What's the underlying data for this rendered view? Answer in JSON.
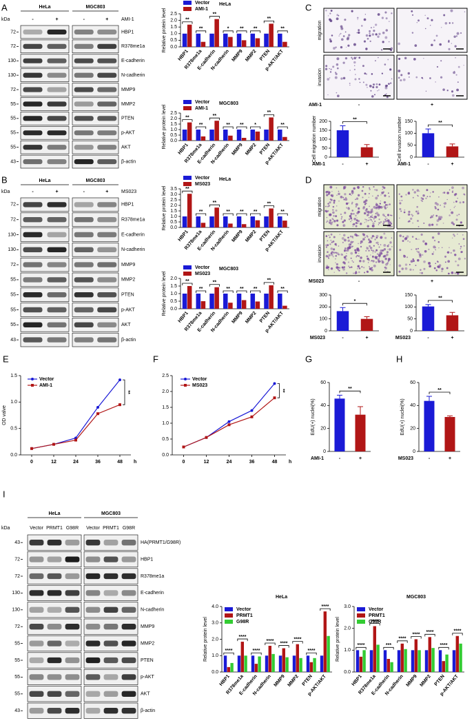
{
  "panel_labels": [
    "A",
    "B",
    "C",
    "D",
    "E",
    "F",
    "G",
    "H",
    "I"
  ],
  "blots": [
    {
      "kda_label": "kDa",
      "groups": [
        "HeLa",
        "MGC803"
      ],
      "lanes": [
        "-",
        "+",
        "-",
        "+"
      ],
      "treatment": "AMI-1",
      "rows": [
        {
          "kda": 72,
          "protein": "HBP1"
        },
        {
          "kda": 72,
          "protein": "R378me1a"
        },
        {
          "kda": 130,
          "protein": "E-cadherin"
        },
        {
          "kda": 130,
          "protein": "N-cadherin"
        },
        {
          "kda": 72,
          "protein": "MMP9"
        },
        {
          "kda": 55,
          "protein": "MMP2"
        },
        {
          "kda": 55,
          "protein": "PTEN"
        },
        {
          "kda": 55,
          "protein": "p-AKT"
        },
        {
          "kda": 55,
          "protein": "AKT"
        },
        {
          "kda": 43,
          "protein": "β-actin"
        }
      ]
    },
    {
      "kda_label": "kDa",
      "groups": [
        "HeLa",
        "MGC803"
      ],
      "lanes": [
        "-",
        "+",
        "-",
        "+"
      ],
      "treatment": "MS023",
      "rows": [
        {
          "kda": 72,
          "protein": "HBP1"
        },
        {
          "kda": 72,
          "protein": "R378me1a"
        },
        {
          "kda": 130,
          "protein": "E-cadherin"
        },
        {
          "kda": 130,
          "protein": "N-cadherin"
        },
        {
          "kda": 72,
          "protein": "MMP9"
        },
        {
          "kda": 55,
          "protein": "MMP2"
        },
        {
          "kda": 55,
          "protein": "PTEN"
        },
        {
          "kda": 55,
          "protein": "p-AKT"
        },
        {
          "kda": 55,
          "protein": "AKT"
        },
        {
          "kda": 43,
          "protein": "β-actin"
        }
      ]
    },
    {
      "kda_label": "kDa",
      "groups": [
        "HeLa",
        "MGC803"
      ],
      "lanes": [
        "Vector",
        "PRMT1",
        "G98R",
        "Vector",
        "PRMT1",
        "G98R"
      ],
      "rows": [
        {
          "kda": 43,
          "protein": "HA(PRMT1/G98R)"
        },
        {
          "kda": 72,
          "protein": "HBP1"
        },
        {
          "kda": 72,
          "protein": "R378me1a"
        },
        {
          "kda": 130,
          "protein": "E-cadherin"
        },
        {
          "kda": 130,
          "protein": "N-cadherin"
        },
        {
          "kda": 72,
          "protein": "MMP9"
        },
        {
          "kda": 55,
          "protein": "MMP2"
        },
        {
          "kda": 55,
          "protein": "PTEN"
        },
        {
          "kda": 55,
          "protein": "p-AKT"
        },
        {
          "kda": 55,
          "protein": "AKT"
        },
        {
          "kda": 43,
          "protein": "β-actin"
        }
      ]
    }
  ],
  "micrographs": [
    {
      "rows": [
        "migration",
        "invasion"
      ],
      "treatment": "AMI-1",
      "lanes": [
        "-",
        "+"
      ]
    },
    {
      "rows": [
        "migration",
        "invasion"
      ],
      "treatment": "MS023",
      "lanes": [
        "-",
        "+"
      ]
    }
  ],
  "chart_data": [
    {
      "type": "bar",
      "title": "HeLa",
      "ylabel": "Relative protein level",
      "categories": [
        "HBP1",
        "R378me1a",
        "E-cadherin",
        "N-cadherin",
        "MMP9",
        "MMP2",
        "PTEN",
        "p-AKT/AKT"
      ],
      "series": [
        {
          "name": "Vector",
          "color": "#1a1ad6",
          "values": [
            1,
            1,
            1,
            1,
            1,
            1,
            1,
            1
          ]
        },
        {
          "name": "AMI-1",
          "color": "#b11616",
          "values": [
            1.68,
            0.38,
            2.1,
            0.75,
            0.5,
            0.65,
            1.75,
            0.38
          ]
        }
      ],
      "ylim": [
        0,
        2.5
      ],
      "yticks": [
        {
          "value": 0,
          "label": "0.0"
        },
        0.5,
        {
          "value": 1,
          "label": "1.0"
        },
        1.5,
        {
          "value": 2,
          "label": "2.0"
        },
        2.5
      ],
      "significance": [
        "**",
        "**",
        "**",
        "*",
        "**",
        "**",
        "**",
        "**"
      ]
    },
    {
      "type": "bar",
      "title": "MGC803",
      "ylabel": "Relative protein level",
      "categories": [
        "HBP1",
        "R378me1a",
        "E-cadherin",
        "N-cadherin",
        "MMP9",
        "MMP2",
        "PTEN",
        "p-AKT/AKT"
      ],
      "series": [
        {
          "name": "Vector",
          "color": "#1a1ad6",
          "values": [
            1,
            1,
            1,
            1,
            1,
            1,
            1,
            1
          ]
        },
        {
          "name": "AMI-1",
          "color": "#b11616",
          "values": [
            1.65,
            0.38,
            1.8,
            0.45,
            0.25,
            0.82,
            2.1,
            0.33
          ]
        }
      ],
      "ylim": [
        0,
        2.5
      ],
      "yticks": [
        {
          "value": 0,
          "label": "0.0"
        },
        0.5,
        {
          "value": 1,
          "label": "1.0"
        },
        1.5,
        {
          "value": 2,
          "label": "2.0"
        },
        2.5
      ],
      "significance": [
        "**",
        "**",
        "**",
        "**",
        "**",
        "*",
        "**",
        "**"
      ]
    },
    {
      "type": "bar",
      "title": "HeLa",
      "ylabel": "Relative protein level",
      "categories": [
        "HBP1",
        "R378me1a",
        "E-cadherin",
        "N-cadherin",
        "MMP9",
        "MMP2",
        "PTEN",
        "p-AKT/AKT"
      ],
      "series": [
        {
          "name": "Vector",
          "color": "#1a1ad6",
          "values": [
            1,
            1,
            1,
            1,
            1,
            1,
            1,
            1
          ]
        },
        {
          "name": "MS023",
          "color": "#b11616",
          "values": [
            3.05,
            0.42,
            1.8,
            0.35,
            0.3,
            0.65,
            1.72,
            0.62
          ]
        }
      ],
      "ylim": [
        0,
        3.5
      ],
      "yticks": [
        {
          "value": 0,
          "label": "0.0"
        },
        0.5,
        {
          "value": 1,
          "label": "1.0"
        },
        1.5,
        {
          "value": 2,
          "label": "2.0"
        },
        2.5,
        {
          "value": 3,
          "label": "3.0"
        },
        3.5
      ],
      "significance": [
        "**",
        "**",
        "**",
        "**",
        "**",
        "**",
        "**",
        "**"
      ]
    },
    {
      "type": "bar",
      "title": "MGC803",
      "ylabel": "Relative protein level",
      "categories": [
        "HBP1",
        "R378me1a",
        "E-cadherin",
        "N-cadherin",
        "MMP9",
        "MMP2",
        "PTEN",
        "p-AKT/AKT"
      ],
      "series": [
        {
          "name": "Vector",
          "color": "#1a1ad6",
          "values": [
            1,
            1,
            1,
            1,
            1,
            1,
            1,
            1
          ]
        },
        {
          "name": "MS023",
          "color": "#b11616",
          "values": [
            1.5,
            0.5,
            1.42,
            0.4,
            0.57,
            0.48,
            1.55,
            0.2
          ]
        }
      ],
      "ylim": [
        0,
        2
      ],
      "yticks": [
        {
          "value": 0,
          "label": "0.0"
        },
        0.5,
        {
          "value": 1,
          "label": "1.0"
        },
        1.5,
        {
          "value": 2,
          "label": "2.0"
        }
      ],
      "significance": [
        "**",
        "**",
        "**",
        "**",
        "**",
        "**",
        "**",
        "**"
      ]
    },
    {
      "type": "bar",
      "ylabel": "Cell migration number",
      "categories": [
        "-",
        "+"
      ],
      "treatment": "AMI-1",
      "values": [
        150,
        55
      ],
      "errors": [
        25,
        15
      ],
      "colors": [
        "#1a1ad6",
        "#b11616"
      ],
      "ylim": [
        0,
        200
      ],
      "yticks": [
        0,
        50,
        100,
        150,
        200
      ],
      "significance": "**"
    },
    {
      "type": "bar",
      "ylabel": "Cell invasion number",
      "categories": [
        "-",
        "+"
      ],
      "treatment": "AMI-1",
      "values": [
        100,
        45
      ],
      "errors": [
        18,
        10
      ],
      "colors": [
        "#1a1ad6",
        "#b11616"
      ],
      "ylim": [
        0,
        150
      ],
      "yticks": [
        0,
        50,
        100,
        150
      ],
      "significance": "**"
    },
    {
      "type": "bar",
      "categories": [
        "-",
        "+"
      ],
      "treatment": "MS023",
      "values": [
        165,
        100
      ],
      "errors": [
        30,
        18
      ],
      "colors": [
        "#1a1ad6",
        "#b11616"
      ],
      "ylim": [
        0,
        300
      ],
      "yticks": [
        0,
        100,
        200,
        300
      ],
      "significance": "*"
    },
    {
      "type": "bar",
      "categories": [
        "-",
        "+"
      ],
      "treatment": "MS023",
      "values": [
        102,
        65
      ],
      "errors": [
        8,
        12
      ],
      "colors": [
        "#1a1ad6",
        "#b11616"
      ],
      "ylim": [
        0,
        150
      ],
      "yticks": [
        0,
        50,
        100,
        150
      ],
      "significance": "**"
    },
    {
      "type": "line",
      "ylabel": "OD valve",
      "xlabel": "h",
      "x": [
        0,
        12,
        24,
        36,
        48
      ],
      "xlim": [
        -6,
        54
      ],
      "xticks": [
        0,
        12,
        24,
        36,
        48
      ],
      "series": [
        {
          "name": "Vector",
          "color": "#1a1ad6",
          "marker": "circle",
          "values": [
            0.12,
            0.2,
            0.32,
            0.9,
            1.42
          ]
        },
        {
          "name": "AMI-1",
          "color": "#b11616",
          "marker": "square",
          "values": [
            0.12,
            0.2,
            0.28,
            0.78,
            0.95
          ]
        }
      ],
      "ylim": [
        0,
        1.5
      ],
      "yticks": [
        {
          "value": 0,
          "label": "0.0"
        },
        0.5,
        {
          "value": 1,
          "label": "1.0"
        },
        1.5
      ],
      "significance": "**"
    },
    {
      "type": "line",
      "xlabel": "h",
      "x": [
        0,
        12,
        24,
        36,
        48
      ],
      "xlim": [
        -6,
        54
      ],
      "xticks": [
        0,
        12,
        24,
        36,
        48
      ],
      "series": [
        {
          "name": "Vector",
          "color": "#1a1ad6",
          "marker": "circle",
          "values": [
            0.25,
            0.55,
            1.05,
            1.4,
            2.25
          ]
        },
        {
          "name": "MS023",
          "color": "#b11616",
          "marker": "square",
          "values": [
            0.25,
            0.55,
            0.95,
            1.2,
            1.8
          ]
        }
      ],
      "ylim": [
        0,
        2.5
      ],
      "yticks": [
        {
          "value": 0,
          "label": "0.0"
        },
        0.5,
        {
          "value": 1,
          "label": "1.0"
        },
        1.5,
        {
          "value": 2,
          "label": "2.0"
        },
        2.5
      ],
      "significance": "**"
    },
    {
      "type": "bar",
      "ylabel": "EdU(+) nuclei(%)",
      "categories": [
        "-",
        "+"
      ],
      "treatment": "AMI-1",
      "values": [
        46,
        32
      ],
      "errors": [
        3,
        7
      ],
      "colors": [
        "#1a1ad6",
        "#b11616"
      ],
      "ylim": [
        0,
        60
      ],
      "yticks": [
        0,
        20,
        40,
        60
      ],
      "significance": "**"
    },
    {
      "type": "bar",
      "ylabel": "EdU(+) nuclei(%)",
      "categories": [
        "-",
        "+"
      ],
      "treatment": "MS023",
      "values": [
        44,
        30
      ],
      "errors": [
        4,
        1
      ],
      "colors": [
        "#1a1ad6",
        "#b11616"
      ],
      "ylim": [
        0,
        60
      ],
      "yticks": [
        0,
        20,
        40,
        60
      ],
      "significance": "**"
    },
    {
      "type": "bar",
      "title": "HeLa",
      "ylabel": "Relative protein level",
      "categories": [
        "HBP1",
        "R378me1a",
        "E-cadherin",
        "N-cadherin",
        "MMP9",
        "MMP2",
        "PTEN",
        "p-AKT/AKT"
      ],
      "series": [
        {
          "name": "Vector",
          "color": "#1a1ad6",
          "values": [
            1,
            1,
            1,
            1,
            1,
            1,
            1,
            1
          ]
        },
        {
          "name": "PRMT1",
          "color": "#b11616",
          "values": [
            0.3,
            1.85,
            0.5,
            1.6,
            1.45,
            1.7,
            0.6,
            3.7
          ]
        },
        {
          "name": "G98R",
          "color": "#33cc33",
          "values": [
            0.55,
            1.0,
            0.95,
            1.1,
            0.9,
            0.85,
            0.85,
            2.2
          ]
        }
      ],
      "ylim": [
        0,
        4
      ],
      "yticks": [
        {
          "value": 0,
          "label": "0.0"
        },
        {
          "value": 1,
          "label": "1.0"
        },
        {
          "value": 2,
          "label": "2.0"
        },
        {
          "value": 3,
          "label": "3.0"
        },
        {
          "value": 4,
          "label": "4.0"
        }
      ],
      "significance": [
        "****",
        "****",
        "****",
        "****",
        "****",
        "****",
        "****",
        "****"
      ]
    },
    {
      "type": "bar",
      "title": "MGC803",
      "ylabel": "Relative protein level",
      "categories": [
        "HBP1",
        "R378me1a",
        "E-cadherin",
        "N-cadherin",
        "MMP9",
        "MMP2",
        "PTEN",
        "p-AKT/AKT"
      ],
      "series": [
        {
          "name": "Vector",
          "color": "#1a1ad6",
          "values": [
            1,
            1,
            1,
            1,
            1,
            1,
            1,
            1
          ]
        },
        {
          "name": "PRMT1",
          "color": "#b11616",
          "values": [
            0.7,
            2.1,
            0.6,
            1.3,
            1.5,
            1.6,
            0.5,
            1.65
          ]
        },
        {
          "name": "G98R",
          "color": "#33cc33",
          "values": [
            1.0,
            1.25,
            0.45,
            1.05,
            1.0,
            1.1,
            0.8,
            1.3
          ]
        }
      ],
      "ylim": [
        0,
        3
      ],
      "yticks": [
        {
          "value": 0,
          "label": "0.0"
        },
        {
          "value": 1,
          "label": "1.0"
        },
        {
          "value": 2,
          "label": "2.0"
        },
        {
          "value": 3,
          "label": "3.0"
        }
      ],
      "significance": [
        "****",
        "****",
        "***",
        "****",
        "****",
        "****",
        "****",
        "****"
      ]
    }
  ]
}
